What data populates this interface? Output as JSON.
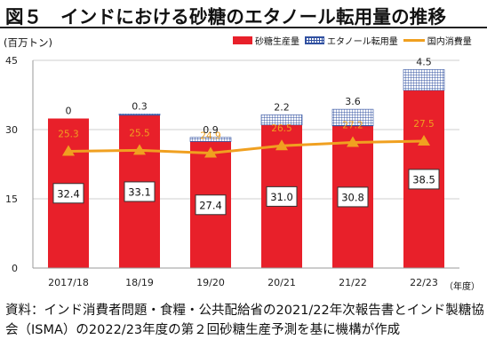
{
  "figure": {
    "title": "図５　インドにおける砂糖のエタノール転用量の推移",
    "unit": "(百万トン)",
    "x_unit": "（年度）",
    "source_label": "資料：",
    "source_text": "インド消費者問題・食糧・公共配給省の2021/22年次報告書とインド製糖協会（ISMA）の2022/23年度の第２回砂糖生産予測を基に機構が作成"
  },
  "legend": {
    "sugar": "砂糖生産量",
    "ethanol": "エタノール転用量",
    "domestic": "国内消費量"
  },
  "colors": {
    "sugar": "#e8202a",
    "ethanol_hatch": "#3050a0",
    "domestic_line": "#f0a020",
    "marker": "#f0a020"
  },
  "chart_data": {
    "type": "bar",
    "stacked": true,
    "categories": [
      "2017/18",
      "18/19",
      "19/20",
      "20/21",
      "21/22",
      "22/23"
    ],
    "series": [
      {
        "name": "砂糖生産量",
        "type": "bar",
        "values": [
          32.4,
          33.1,
          27.4,
          31.0,
          30.8,
          38.5
        ],
        "labels": [
          "32.4",
          "33.1",
          "27.4",
          "31.0",
          "30.8",
          "38.5"
        ]
      },
      {
        "name": "エタノール転用量",
        "type": "bar",
        "values": [
          0,
          0.3,
          0.9,
          2.2,
          3.6,
          4.5
        ],
        "labels": [
          "0",
          "0.3",
          "0.9",
          "2.2",
          "3.6",
          "4.5"
        ]
      },
      {
        "name": "国内消費量",
        "type": "line",
        "values": [
          25.3,
          25.5,
          24.9,
          26.5,
          27.2,
          27.5
        ],
        "labels": [
          "25.3",
          "25.5",
          "24.9",
          "26.5",
          "27.2",
          "27.5"
        ]
      }
    ],
    "yticks": [
      "0",
      "15",
      "30",
      "45"
    ],
    "ylim": [
      0,
      45
    ],
    "grid": true,
    "legend_position": "top-right"
  }
}
